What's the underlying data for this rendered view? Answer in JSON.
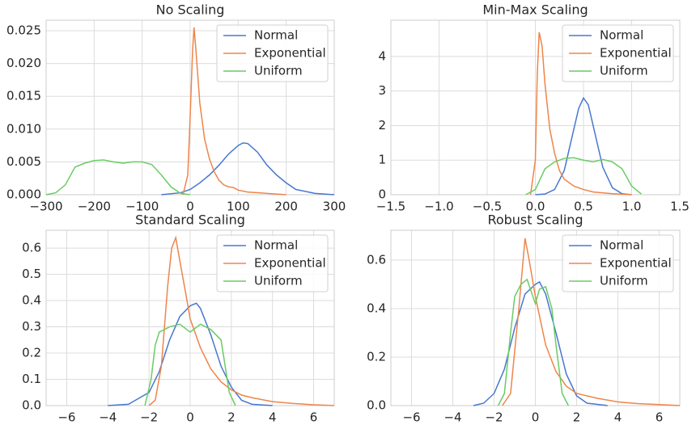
{
  "chart_data": [
    {
      "type": "line",
      "title": "No Scaling",
      "grid": true,
      "legend": "upper right",
      "xlim": [
        -300,
        300
      ],
      "xticks": [
        {
          "value": -300,
          "label": "−300"
        },
        {
          "value": -200,
          "label": "−200"
        },
        {
          "value": -100,
          "label": "−100"
        },
        0,
        100,
        200,
        300
      ],
      "ylim": [
        0,
        0.0266
      ],
      "yticks": [
        {
          "value": 0,
          "label": "0.000"
        },
        0.005,
        {
          "value": 0.01,
          "label": "0.010"
        },
        0.015,
        {
          "value": 0.02,
          "label": "0.020"
        },
        0.025
      ],
      "series": [
        {
          "name": "Normal",
          "color": "#4878cf",
          "x": [
            -60,
            -20,
            0,
            20,
            40,
            60,
            80,
            100,
            110,
            120,
            140,
            160,
            180,
            200,
            220,
            260,
            300
          ],
          "values": [
            0,
            0.0003,
            0.0008,
            0.0018,
            0.003,
            0.0045,
            0.0062,
            0.0075,
            0.0079,
            0.0078,
            0.0065,
            0.0045,
            0.003,
            0.0018,
            0.0008,
            0.0002,
            0
          ]
        },
        {
          "name": "Exponential",
          "color": "#ee854a",
          "x": [
            -15,
            -5,
            0,
            5,
            8,
            12,
            20,
            30,
            40,
            50,
            60,
            70,
            80,
            90,
            100,
            120,
            140,
            160,
            200
          ],
          "values": [
            0,
            0.003,
            0.012,
            0.022,
            0.0255,
            0.022,
            0.014,
            0.0085,
            0.0055,
            0.0035,
            0.0022,
            0.0015,
            0.0012,
            0.0011,
            0.0007,
            0.0004,
            0.0003,
            0.0002,
            0
          ]
        },
        {
          "name": "Uniform",
          "color": "#6acc65",
          "x": [
            -300,
            -280,
            -260,
            -240,
            -220,
            -200,
            -180,
            -160,
            -140,
            -120,
            -100,
            -80,
            -60,
            -40,
            -20,
            0
          ],
          "values": [
            0,
            0.0003,
            0.0015,
            0.0042,
            0.0048,
            0.0052,
            0.0053,
            0.005,
            0.0048,
            0.005,
            0.005,
            0.0046,
            0.003,
            0.0012,
            0.0002,
            0
          ]
        }
      ]
    },
    {
      "type": "line",
      "title": "Min-Max Scaling",
      "grid": true,
      "legend": "upper right",
      "xlim": [
        -1.5,
        1.5
      ],
      "xticks": [
        {
          "value": -1.5,
          "label": "−1.5"
        },
        {
          "value": -1,
          "label": "−1.0"
        },
        {
          "value": -0.5,
          "label": "−0.5"
        },
        {
          "value": 0,
          "label": "0.0"
        },
        0.5,
        {
          "value": 1,
          "label": "1.0"
        },
        1.5
      ],
      "ylim": [
        0,
        5.05
      ],
      "yticks": [
        0,
        1,
        2,
        3,
        4
      ],
      "series": [
        {
          "name": "Normal",
          "color": "#4878cf",
          "x": [
            0,
            0.1,
            0.2,
            0.3,
            0.4,
            0.45,
            0.5,
            0.55,
            0.6,
            0.7,
            0.8,
            0.9,
            1.0
          ],
          "values": [
            0,
            0.02,
            0.15,
            0.7,
            1.9,
            2.5,
            2.8,
            2.6,
            2.0,
            0.8,
            0.2,
            0.03,
            0
          ]
        },
        {
          "name": "Exponential",
          "color": "#ee854a",
          "x": [
            -0.05,
            0,
            0.02,
            0.04,
            0.07,
            0.1,
            0.15,
            0.2,
            0.25,
            0.3,
            0.4,
            0.5,
            0.6,
            0.8,
            1.0
          ],
          "values": [
            0,
            1.0,
            3.5,
            4.7,
            4.3,
            3.2,
            1.9,
            1.2,
            0.7,
            0.45,
            0.25,
            0.15,
            0.08,
            0.03,
            0
          ]
        },
        {
          "name": "Uniform",
          "color": "#6acc65",
          "x": [
            -0.1,
            0,
            0.1,
            0.2,
            0.3,
            0.4,
            0.5,
            0.6,
            0.7,
            0.8,
            0.9,
            1.0,
            1.1
          ],
          "values": [
            0,
            0.15,
            0.75,
            0.95,
            1.05,
            1.07,
            1.0,
            0.95,
            1.02,
            0.95,
            0.75,
            0.25,
            0.02
          ]
        }
      ]
    },
    {
      "type": "line",
      "title": "Standard Scaling",
      "grid": true,
      "legend": "upper right",
      "xlim": [
        -7,
        7
      ],
      "xticks": [
        {
          "value": -6,
          "label": "−6"
        },
        {
          "value": -4,
          "label": "−4"
        },
        {
          "value": -2,
          "label": "−2"
        },
        0,
        2,
        4,
        6
      ],
      "ylim": [
        0,
        0.668
      ],
      "yticks": [
        {
          "value": 0,
          "label": "0.0"
        },
        0.1,
        0.2,
        0.3,
        0.4,
        0.5,
        0.6
      ],
      "series": [
        {
          "name": "Normal",
          "color": "#4878cf",
          "x": [
            -4,
            -3,
            -2,
            -1.5,
            -1,
            -0.5,
            0,
            0.3,
            0.5,
            1,
            1.5,
            2,
            2.5,
            3,
            4
          ],
          "values": [
            0,
            0.005,
            0.05,
            0.13,
            0.25,
            0.34,
            0.38,
            0.39,
            0.37,
            0.27,
            0.15,
            0.07,
            0.02,
            0.005,
            0
          ]
        },
        {
          "name": "Exponential",
          "color": "#ee854a",
          "x": [
            -2,
            -1.7,
            -1.4,
            -1.1,
            -0.9,
            -0.7,
            -0.5,
            -0.2,
            0,
            0.5,
            1,
            1.5,
            2,
            2.5,
            3,
            4,
            5,
            6,
            7
          ],
          "values": [
            0,
            0.02,
            0.15,
            0.45,
            0.6,
            0.64,
            0.55,
            0.42,
            0.33,
            0.22,
            0.14,
            0.09,
            0.06,
            0.04,
            0.03,
            0.015,
            0.008,
            0.003,
            0
          ]
        },
        {
          "name": "Uniform",
          "color": "#6acc65",
          "x": [
            -2.2,
            -1.9,
            -1.7,
            -1.5,
            -1,
            -0.5,
            0,
            0.5,
            1,
            1.5,
            1.7,
            1.9,
            2.2
          ],
          "values": [
            0,
            0.1,
            0.23,
            0.28,
            0.3,
            0.31,
            0.28,
            0.31,
            0.29,
            0.25,
            0.15,
            0.05,
            0
          ]
        }
      ]
    },
    {
      "type": "line",
      "title": "Robust Scaling",
      "grid": true,
      "legend": "upper right",
      "xlim": [
        -7,
        7
      ],
      "xticks": [
        {
          "value": -6,
          "label": "−6"
        },
        {
          "value": -4,
          "label": "−4"
        },
        {
          "value": -2,
          "label": "−2"
        },
        0,
        2,
        4,
        6
      ],
      "ylim": [
        0,
        0.723
      ],
      "yticks": [
        {
          "value": 0,
          "label": "0.0"
        },
        0.2,
        0.4,
        0.6
      ],
      "series": [
        {
          "name": "Normal",
          "color": "#4878cf",
          "x": [
            -3,
            -2.5,
            -2,
            -1.5,
            -1,
            -0.5,
            0,
            0.2,
            0.5,
            1,
            1.5,
            2,
            2.5,
            3.5
          ],
          "values": [
            0,
            0.01,
            0.05,
            0.15,
            0.32,
            0.46,
            0.5,
            0.51,
            0.46,
            0.3,
            0.13,
            0.04,
            0.01,
            0
          ]
        },
        {
          "name": "Exponential",
          "color": "#ee854a",
          "x": [
            -1.6,
            -1.2,
            -0.8,
            -0.5,
            -0.3,
            0,
            0.5,
            1,
            1.5,
            2,
            3,
            4,
            5,
            6,
            7
          ],
          "values": [
            0,
            0.05,
            0.4,
            0.69,
            0.6,
            0.45,
            0.25,
            0.14,
            0.08,
            0.05,
            0.03,
            0.015,
            0.008,
            0.004,
            0
          ]
        },
        {
          "name": "Uniform",
          "color": "#6acc65",
          "x": [
            -1.8,
            -1.5,
            -1.2,
            -1,
            -0.7,
            -0.4,
            -0.2,
            0,
            0.2,
            0.5,
            0.8,
            1,
            1.3,
            1.6
          ],
          "values": [
            0,
            0.05,
            0.3,
            0.45,
            0.5,
            0.52,
            0.47,
            0.42,
            0.48,
            0.49,
            0.4,
            0.25,
            0.05,
            0
          ]
        }
      ]
    }
  ]
}
